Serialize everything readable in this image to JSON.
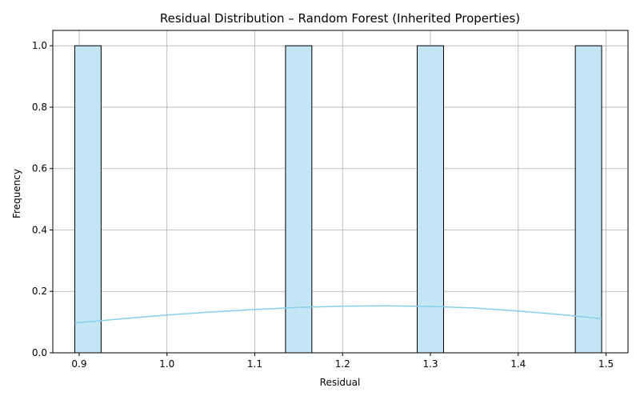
{
  "chart_data": {
    "type": "bar",
    "title": "Residual Distribution – Random Forest (Inherited Properties)",
    "xlabel": "Residual",
    "ylabel": "Frequency",
    "xlim": [
      0.87,
      1.525
    ],
    "ylim": [
      0.0,
      1.05
    ],
    "x_ticks": [
      0.9,
      1.0,
      1.1,
      1.2,
      1.3,
      1.4,
      1.5
    ],
    "x_tick_labels": [
      "0.9",
      "1.0",
      "1.1",
      "1.2",
      "1.3",
      "1.4",
      "1.5"
    ],
    "y_ticks": [
      0.0,
      0.2,
      0.4,
      0.6,
      0.8,
      1.0
    ],
    "y_tick_labels": [
      "0.0",
      "0.2",
      "0.4",
      "0.6",
      "0.8",
      "1.0"
    ],
    "grid": true,
    "bars": [
      {
        "x0": 0.895,
        "x1": 0.925,
        "count": 1
      },
      {
        "x0": 1.135,
        "x1": 1.165,
        "count": 1
      },
      {
        "x0": 1.285,
        "x1": 1.315,
        "count": 1
      },
      {
        "x0": 1.465,
        "x1": 1.495,
        "count": 1
      }
    ],
    "kde": {
      "x": [
        0.895,
        0.95,
        1.0,
        1.05,
        1.1,
        1.15,
        1.2,
        1.25,
        1.3,
        1.35,
        1.4,
        1.45,
        1.495
      ],
      "y": [
        0.097,
        0.111,
        0.123,
        0.133,
        0.141,
        0.148,
        0.152,
        0.153,
        0.151,
        0.146,
        0.136,
        0.124,
        0.111
      ]
    },
    "colors": {
      "bar_fill": "#c3e5f4",
      "bar_edge": "#000000",
      "kde_line": "#87ceeb",
      "grid": "#b0b0b0",
      "axes": "#000000"
    }
  }
}
